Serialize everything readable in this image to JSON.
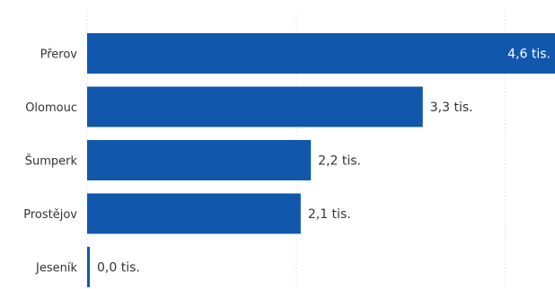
{
  "chart_data": {
    "type": "bar",
    "orientation": "horizontal",
    "categories": [
      "Přerov",
      "Olomouc",
      "Šumperk",
      "Prostějov",
      "Jeseník"
    ],
    "values": [
      4.6,
      3.3,
      2.2,
      2.1,
      0.0
    ],
    "value_labels": [
      "4,6 tis.",
      "3,3 tis.",
      "2,2 tis.",
      "2,1 tis.",
      "0,0 tis."
    ],
    "xlim": [
      0,
      4.6
    ],
    "grid": true,
    "bar_color": "#1158ad",
    "label_color": "#333333",
    "inside_label_color": "#ffffff",
    "grid_color": "#d3d3d3"
  }
}
